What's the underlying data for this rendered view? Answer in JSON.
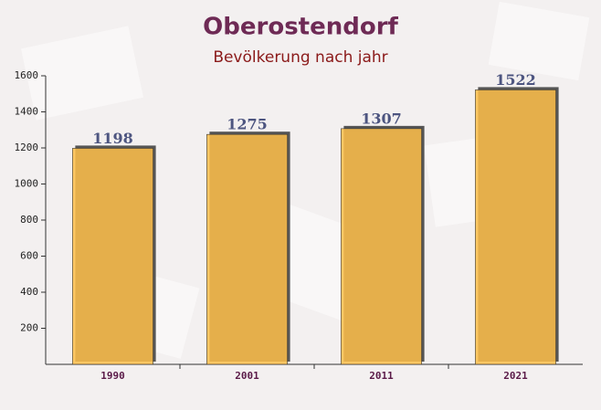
{
  "chart_data": {
    "type": "bar",
    "title": "Oberostendorf",
    "subtitle": "Bevölkerung nach jahr",
    "categories": [
      "1990",
      "2001",
      "2011",
      "2021"
    ],
    "values": [
      1198,
      1275,
      1307,
      1522
    ],
    "color": "#ffc04a",
    "ylim": [
      0,
      1600
    ],
    "yticks": [
      200,
      400,
      600,
      800,
      1000,
      1200,
      1400,
      1600
    ]
  }
}
